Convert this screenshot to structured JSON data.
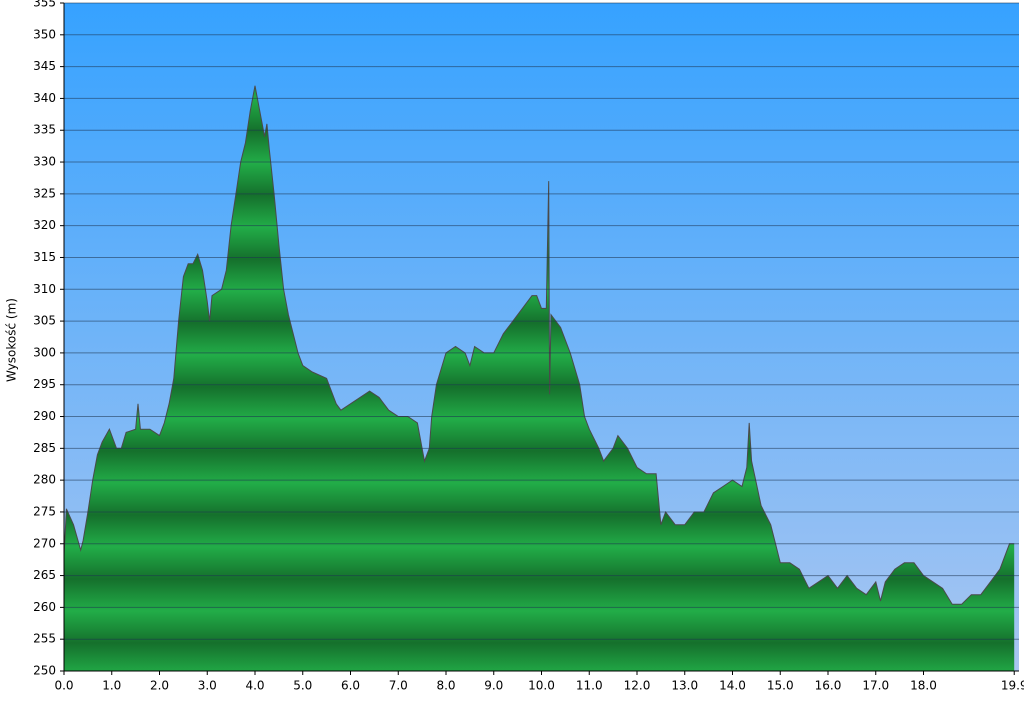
{
  "chart_data": {
    "type": "area",
    "y_label": "Wysokość (m)",
    "color": "#1fa443",
    "grid": true,
    "xlim": [
      0,
      20
    ],
    "ylim": [
      250,
      355
    ],
    "xticks": [
      {
        "value": 0,
        "label": "0.0"
      },
      {
        "value": 1,
        "label": "1.0"
      },
      {
        "value": 2,
        "label": "2.0"
      },
      {
        "value": 3,
        "label": "3.0"
      },
      {
        "value": 4,
        "label": "4.0"
      },
      {
        "value": 5,
        "label": "5.0"
      },
      {
        "value": 6,
        "label": "6.0"
      },
      {
        "value": 7,
        "label": "7.0"
      },
      {
        "value": 8,
        "label": "8.0"
      },
      {
        "value": 9,
        "label": "9.0"
      },
      {
        "value": 10,
        "label": "10.0"
      },
      {
        "value": 11,
        "label": "11.0"
      },
      {
        "value": 12,
        "label": "12.0"
      },
      {
        "value": 13,
        "label": "13.0"
      },
      {
        "value": 14,
        "label": "14.0"
      },
      {
        "value": 15,
        "label": "15.0"
      },
      {
        "value": 16,
        "label": "16.0"
      },
      {
        "value": 17,
        "label": "17.0"
      },
      {
        "value": 18,
        "label": "18.0"
      },
      19.9
    ],
    "yticks": [
      250,
      255,
      260,
      265,
      270,
      275,
      280,
      285,
      290,
      295,
      300,
      305,
      310,
      315,
      320,
      325,
      330,
      335,
      340,
      345,
      350,
      355
    ],
    "x": [
      0,
      0.05,
      0.2,
      0.35,
      0.4,
      0.5,
      0.6,
      0.7,
      0.8,
      0.95,
      1.1,
      1.2,
      1.3,
      1.5,
      1.55,
      1.6,
      1.8,
      2.0,
      2.1,
      2.2,
      2.3,
      2.4,
      2.5,
      2.6,
      2.7,
      2.8,
      2.9,
      3.0,
      3.05,
      3.1,
      3.3,
      3.4,
      3.5,
      3.6,
      3.7,
      3.8,
      3.9,
      4.0,
      4.1,
      4.2,
      4.25,
      4.3,
      4.4,
      4.5,
      4.6,
      4.7,
      4.8,
      4.9,
      5.0,
      5.2,
      5.5,
      5.7,
      5.8,
      6.0,
      6.2,
      6.4,
      6.6,
      6.8,
      7.0,
      7.2,
      7.4,
      7.5,
      7.55,
      7.65,
      7.7,
      7.8,
      8.0,
      8.2,
      8.4,
      8.5,
      8.6,
      8.8,
      9.0,
      9.2,
      9.4,
      9.6,
      9.8,
      9.9,
      10.0,
      10.1,
      10.15,
      10.17,
      10.2,
      10.4,
      10.6,
      10.8,
      10.9,
      11.0,
      11.2,
      11.3,
      11.5,
      11.6,
      11.8,
      12.0,
      12.2,
      12.4,
      12.45,
      12.5,
      12.6,
      12.8,
      13.0,
      13.2,
      13.4,
      13.6,
      13.8,
      14.0,
      14.2,
      14.3,
      14.35,
      14.4,
      14.6,
      14.8,
      15.0,
      15.2,
      15.4,
      15.6,
      15.8,
      16.0,
      16.2,
      16.4,
      16.6,
      16.8,
      17.0,
      17.1,
      17.2,
      17.4,
      17.6,
      17.8,
      18.0,
      18.2,
      18.4,
      18.6,
      18.8,
      19.0,
      19.2,
      19.4,
      19.6,
      19.8,
      19.9
    ],
    "values": [
      268,
      275.5,
      273,
      269,
      270.5,
      275,
      280,
      284,
      286,
      288,
      285,
      285,
      287.5,
      288,
      292,
      288,
      288,
      287,
      289,
      292,
      296,
      305,
      312,
      314,
      314,
      315.5,
      313,
      308,
      305,
      309,
      310,
      313,
      320,
      325,
      330,
      333,
      338,
      342,
      338,
      334,
      336,
      332,
      325,
      317,
      310,
      306,
      303,
      300,
      298,
      297,
      296,
      292,
      291,
      292,
      293,
      294,
      293,
      291,
      290,
      290,
      289,
      285,
      283,
      285,
      290,
      295,
      300,
      301,
      300,
      298,
      301,
      300,
      300,
      303,
      305,
      307,
      309,
      309,
      307,
      307,
      327,
      293.5,
      306,
      304,
      300,
      295,
      290,
      288,
      285,
      283,
      285,
      287,
      285,
      282,
      281,
      281,
      277,
      273,
      275,
      273,
      273,
      275,
      275,
      278,
      279,
      280,
      279,
      282,
      289,
      283,
      276,
      273,
      267,
      267,
      266,
      263,
      264,
      265,
      263,
      265,
      263,
      262,
      264,
      261,
      264,
      266,
      267,
      267,
      265,
      264,
      263,
      260.5,
      260.5,
      262,
      262,
      264,
      266,
      270,
      270
    ]
  }
}
